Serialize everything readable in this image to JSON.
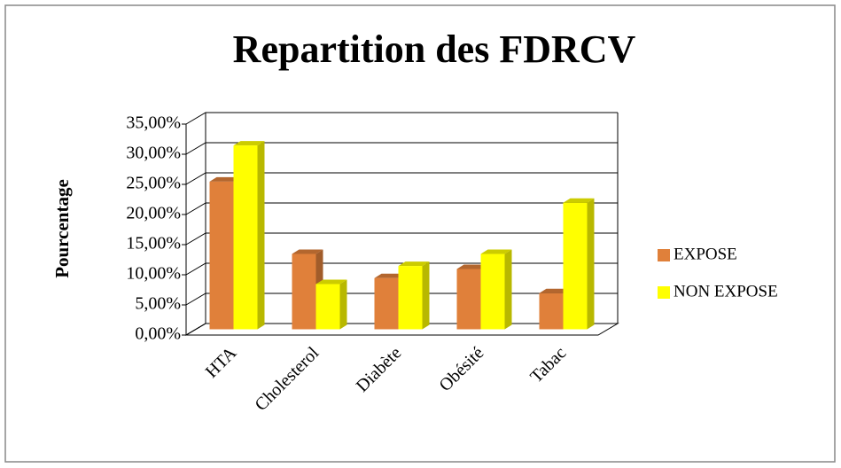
{
  "chart_data": {
    "type": "bar3d",
    "title": "Repartition des FDRCV",
    "y_label": "Pourcentage",
    "categories": [
      "HTA",
      "Cholesterol",
      "Diabète",
      "Obésité",
      "Tabac"
    ],
    "series": [
      {
        "name": "EXPOSE",
        "color": "#e0803a",
        "values": [
          24.5,
          12.5,
          8.5,
          10,
          6
        ]
      },
      {
        "name": "NON EXPOSE",
        "color": "#ffff00",
        "values": [
          30.5,
          7.5,
          10.5,
          12.5,
          21
        ]
      }
    ],
    "ylim": [
      0,
      35
    ],
    "yticks": [
      {
        "value": 0,
        "label": "0,00%"
      },
      {
        "value": 5,
        "label": "5,00%"
      },
      {
        "value": 10,
        "label": "10,00%"
      },
      {
        "value": 15,
        "label": "15,00%"
      },
      {
        "value": 20,
        "label": "20,00%"
      },
      {
        "value": 25,
        "label": "25,00%"
      },
      {
        "value": 30,
        "label": "30,00%"
      },
      {
        "value": 35,
        "label": "35,00%"
      }
    ],
    "grid": true,
    "legend": "right"
  }
}
